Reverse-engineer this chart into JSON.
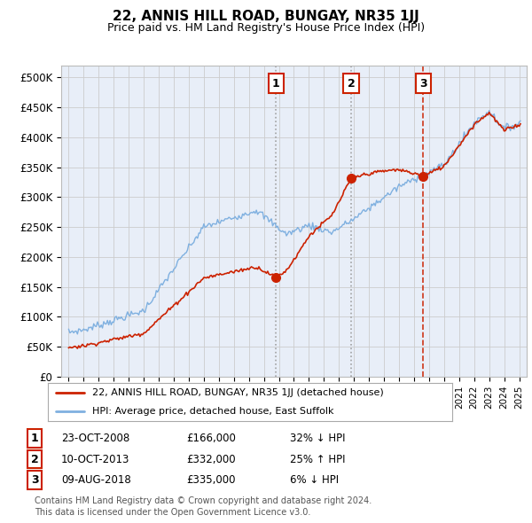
{
  "title": "22, ANNIS HILL ROAD, BUNGAY, NR35 1JJ",
  "subtitle": "Price paid vs. HM Land Registry's House Price Index (HPI)",
  "ylabel_ticks": [
    "£0",
    "£50K",
    "£100K",
    "£150K",
    "£200K",
    "£250K",
    "£300K",
    "£350K",
    "£400K",
    "£450K",
    "£500K"
  ],
  "ytick_vals": [
    0,
    50000,
    100000,
    150000,
    200000,
    250000,
    300000,
    350000,
    400000,
    450000,
    500000
  ],
  "xlim": [
    1994.5,
    2025.5
  ],
  "ylim": [
    0,
    520000
  ],
  "sale_dates": [
    2008.81,
    2013.81,
    2018.61
  ],
  "sale_prices": [
    166000,
    332000,
    335000
  ],
  "sale_labels": [
    "1",
    "2",
    "3"
  ],
  "legend_property_label": "22, ANNIS HILL ROAD, BUNGAY, NR35 1JJ (detached house)",
  "legend_hpi_label": "HPI: Average price, detached house, East Suffolk",
  "table_rows": [
    [
      "1",
      "23-OCT-2008",
      "£166,000",
      "32% ↓ HPI"
    ],
    [
      "2",
      "10-OCT-2013",
      "£332,000",
      "25% ↑ HPI"
    ],
    [
      "3",
      "09-AUG-2018",
      "£335,000",
      "6% ↓ HPI"
    ]
  ],
  "footer": "Contains HM Land Registry data © Crown copyright and database right 2024.\nThis data is licensed under the Open Government Licence v3.0.",
  "bg_color": "#ffffff",
  "plot_bg_color": "#e8eef8",
  "grid_color": "#cccccc",
  "hpi_color": "#7fb0e0",
  "property_color": "#cc2200",
  "vline1_color": "#888888",
  "vline2_color": "#cc2200"
}
